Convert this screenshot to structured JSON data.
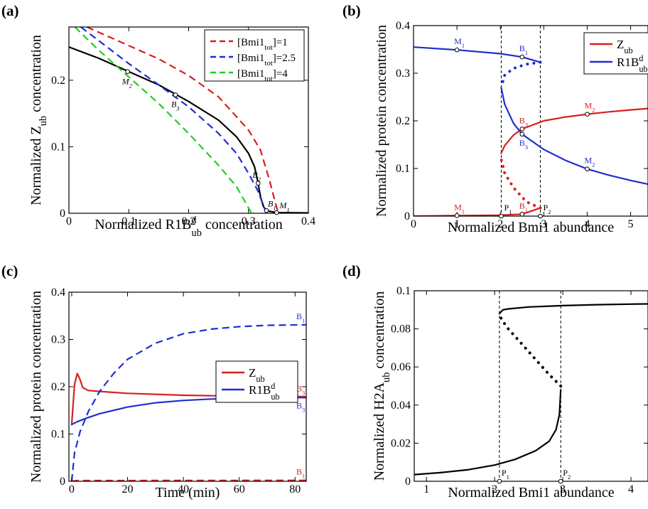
{
  "colors": {
    "red": "#d62020",
    "blue": "#1f2fd0",
    "green": "#22cc22",
    "black": "#000000"
  },
  "chart_data": [
    {
      "panel": "(a)",
      "type": "line",
      "xlabel_main": "Normalized R1B",
      "xlabel_sup": "d",
      "xlabel_sub": "ub",
      "xlabel_tail": " concentration",
      "ylabel_main": "Normalized Z",
      "ylabel_sub": "ub",
      "ylabel_tail": " concentration",
      "xlim": [
        0,
        0.4
      ],
      "ylim": [
        0,
        0.28
      ],
      "xticks": [
        "0",
        "0.1",
        "0.2",
        "0.3",
        "0.4"
      ],
      "yticks": [
        "0",
        "0.1",
        "0.2"
      ],
      "xtick_values": [
        0,
        0.1,
        0.2,
        0.3,
        0.4
      ],
      "ytick_values": [
        0,
        0.1,
        0.2
      ],
      "legend": [
        {
          "label_main": "[Bmi1",
          "label_sub": "tot",
          "label_tail": "]=1",
          "color": "#d62020"
        },
        {
          "label_main": "[Bmi1",
          "label_sub": "tot",
          "label_tail": "]=2.5",
          "color": "#1f2fd0"
        },
        {
          "label_main": "[Bmi1",
          "label_sub": "tot",
          "label_tail": "]=4",
          "color": "#22cc22"
        }
      ],
      "series": [
        {
          "color": "#000000",
          "dash": false,
          "x": [
            0,
            0.05,
            0.1,
            0.15,
            0.2,
            0.25,
            0.28,
            0.3,
            0.31,
            0.315,
            0.32,
            0.325,
            0.33,
            0.34,
            0.35,
            0.4
          ],
          "y": [
            0.25,
            0.233,
            0.213,
            0.193,
            0.168,
            0.14,
            0.115,
            0.09,
            0.07,
            0.05,
            0.025,
            0.01,
            0.004,
            0.002,
            0.001,
            0.0005
          ]
        },
        {
          "color": "#d62020",
          "dash": true,
          "x": [
            0.03,
            0.1,
            0.15,
            0.2,
            0.25,
            0.3,
            0.32,
            0.335,
            0.345,
            0.35
          ],
          "y": [
            0.28,
            0.252,
            0.232,
            0.207,
            0.175,
            0.125,
            0.095,
            0.05,
            0.015,
            0
          ]
        },
        {
          "color": "#1f2fd0",
          "dash": true,
          "x": [
            0.02,
            0.1,
            0.15,
            0.2,
            0.25,
            0.28,
            0.3,
            0.315,
            0.33
          ],
          "y": [
            0.28,
            0.225,
            0.193,
            0.16,
            0.12,
            0.09,
            0.06,
            0.035,
            0
          ]
        },
        {
          "color": "#22cc22",
          "dash": true,
          "x": [
            0.01,
            0.05,
            0.1,
            0.15,
            0.2,
            0.25,
            0.28,
            0.305
          ],
          "y": [
            0.28,
            0.245,
            0.205,
            0.165,
            0.12,
            0.072,
            0.04,
            0
          ]
        }
      ],
      "points": [
        {
          "label": "M",
          "sub": "2",
          "x": 0.098,
          "y": 0.213,
          "color": "#000000",
          "dx": -8,
          "dy": 18
        },
        {
          "label": "B",
          "sub": "3",
          "x": 0.178,
          "y": 0.178,
          "color": "#000000",
          "dx": -6,
          "dy": 17
        },
        {
          "label": "B",
          "sub": "2",
          "x": 0.316,
          "y": 0.045,
          "color": "#000000",
          "dx": -8,
          "dy": -8
        },
        {
          "label": "B",
          "sub": "1",
          "x": 0.33,
          "y": 0.004,
          "color": "#000000",
          "dx": 2,
          "dy": -6
        },
        {
          "label": "M",
          "sub": "1",
          "x": 0.347,
          "y": 0.001,
          "color": "#000000",
          "dx": 4,
          "dy": -6
        }
      ]
    },
    {
      "panel": "(b)",
      "type": "line",
      "xlabel_main": "Normalized Bmi1 abundance",
      "ylabel_main": "Normalized protein concentration",
      "xlim": [
        0,
        5.4
      ],
      "ylim": [
        0,
        0.4
      ],
      "xticks": [
        "0",
        "1",
        "2",
        "3",
        "4",
        "5"
      ],
      "yticks": [
        "0",
        "0.1",
        "0.2",
        "0.3",
        "0.4"
      ],
      "xtick_values": [
        0,
        1,
        2,
        3,
        4,
        5
      ],
      "ytick_values": [
        0,
        0.1,
        0.2,
        0.3,
        0.4
      ],
      "vlines": [
        2.02,
        2.92
      ],
      "legend": [
        {
          "label_main": "Z",
          "label_sub": "ub",
          "color": "#d62020"
        },
        {
          "label_main": "R1B",
          "label_sup": "d",
          "label_sub": "ub",
          "color": "#1f2fd0"
        }
      ],
      "series": [
        {
          "color": "#1f2fd0",
          "style": "solid",
          "x": [
            0,
            1,
            2,
            2.5,
            2.92
          ],
          "y": [
            0.355,
            0.349,
            0.341,
            0.334,
            0.323
          ]
        },
        {
          "color": "#1f2fd0",
          "style": "dotted",
          "x": [
            2.92,
            2.6,
            2.3,
            2.1,
            2.02
          ],
          "y": [
            0.323,
            0.319,
            0.31,
            0.296,
            0.27
          ]
        },
        {
          "color": "#1f2fd0",
          "style": "solid",
          "x": [
            2.02,
            2.1,
            2.3,
            2.5,
            3,
            3.5,
            4,
            4.5,
            5,
            5.4
          ],
          "y": [
            0.27,
            0.235,
            0.195,
            0.172,
            0.14,
            0.117,
            0.099,
            0.086,
            0.075,
            0.067
          ]
        },
        {
          "color": "#d62020",
          "style": "solid",
          "x": [
            0,
            1,
            2,
            2.5,
            2.92
          ],
          "y": [
            0,
            0.001,
            0.002,
            0.004,
            0.017
          ]
        },
        {
          "color": "#d62020",
          "style": "dotted",
          "x": [
            2.92,
            2.6,
            2.3,
            2.1,
            2.02
          ],
          "y": [
            0.017,
            0.03,
            0.06,
            0.09,
            0.12
          ]
        },
        {
          "color": "#d62020",
          "style": "solid",
          "x": [
            2.02,
            2.1,
            2.3,
            2.5,
            3,
            3.5,
            4,
            4.5,
            5,
            5.4
          ],
          "y": [
            0.132,
            0.148,
            0.17,
            0.183,
            0.2,
            0.208,
            0.214,
            0.219,
            0.223,
            0.226
          ]
        }
      ],
      "points": [
        {
          "label": "M",
          "sub": "1",
          "x": 1,
          "y": 0.349,
          "color": "#1f2fd0",
          "dx": -4,
          "dy": -8
        },
        {
          "label": "B",
          "sub": "1",
          "x": 2.5,
          "y": 0.334,
          "color": "#1f2fd0",
          "dx": -4,
          "dy": -8
        },
        {
          "label": "B",
          "sub": "3",
          "x": 2.5,
          "y": 0.183,
          "color": "#d62020",
          "dx": -4,
          "dy": -8
        },
        {
          "label": "B",
          "sub": "3",
          "x": 2.5,
          "y": 0.172,
          "color": "#1f2fd0",
          "dx": -4,
          "dy": 16
        },
        {
          "label": "M",
          "sub": "2",
          "x": 4,
          "y": 0.214,
          "color": "#d62020",
          "dx": -4,
          "dy": -8
        },
        {
          "label": "M",
          "sub": "2",
          "x": 4,
          "y": 0.099,
          "color": "#1f2fd0",
          "dx": -4,
          "dy": -8
        },
        {
          "label": "M",
          "sub": "1",
          "x": 1,
          "y": 0.001,
          "color": "#d62020",
          "dx": -4,
          "dy": -8
        },
        {
          "label": "B",
          "sub": "1",
          "x": 2.5,
          "y": 0.004,
          "color": "#d62020",
          "dx": -4,
          "dy": -8
        },
        {
          "label": "P",
          "sub": "1",
          "x": 2.02,
          "y": 0,
          "color": "#000000",
          "dx": 4,
          "dy": -8
        },
        {
          "label": "P",
          "sub": "2",
          "x": 2.92,
          "y": 0,
          "color": "#000000",
          "dx": 4,
          "dy": -8
        }
      ]
    },
    {
      "panel": "(c)",
      "type": "line",
      "xlabel_main": "Time (min)",
      "ylabel_main": "Normalized protein concentration",
      "xlim": [
        -1,
        84
      ],
      "ylim": [
        0,
        0.4
      ],
      "xticks": [
        "0",
        "20",
        "40",
        "60",
        "80"
      ],
      "yticks": [
        "0",
        "0.1",
        "0.2",
        "0.3",
        "0.4"
      ],
      "xtick_values": [
        0,
        20,
        40,
        60,
        80
      ],
      "ytick_values": [
        0,
        0.1,
        0.2,
        0.3,
        0.4
      ],
      "legend": [
        {
          "label_main": "Z",
          "label_sub": "ub",
          "color": "#d62020"
        },
        {
          "label_main": "R1B",
          "label_sup": "d",
          "label_sub": "ub",
          "color": "#1f2fd0"
        }
      ],
      "series": [
        {
          "color": "#d62020",
          "style": "solid",
          "x": [
            0,
            1,
            2,
            3,
            4,
            6,
            10,
            20,
            40,
            60,
            84
          ],
          "y": [
            0.12,
            0.205,
            0.228,
            0.215,
            0.198,
            0.192,
            0.19,
            0.186,
            0.182,
            0.18,
            0.179
          ]
        },
        {
          "color": "#1f2fd0",
          "style": "solid",
          "x": [
            0,
            2,
            5,
            10,
            20,
            30,
            40,
            50,
            60,
            70,
            84
          ],
          "y": [
            0.12,
            0.126,
            0.133,
            0.143,
            0.157,
            0.166,
            0.171,
            0.174,
            0.176,
            0.177,
            0.177
          ]
        },
        {
          "color": "#1f2fd0",
          "style": "dashed",
          "x": [
            0,
            1,
            3,
            6,
            10,
            15,
            20,
            30,
            40,
            50,
            60,
            70,
            84
          ],
          "y": [
            0.0,
            0.06,
            0.105,
            0.148,
            0.19,
            0.228,
            0.258,
            0.292,
            0.312,
            0.322,
            0.327,
            0.33,
            0.331
          ]
        },
        {
          "color": "#d62020",
          "style": "dashed",
          "x": [
            0,
            2,
            84
          ],
          "y": [
            0.0,
            0.0015,
            0.002
          ]
        }
      ],
      "end_labels": [
        {
          "label": "B",
          "sub": "1",
          "y": 0.331,
          "color": "#1f2fd0",
          "dy": -8
        },
        {
          "label": "B",
          "sub": "3",
          "y": 0.18,
          "color": "#d62020",
          "dy": -7
        },
        {
          "label": "B",
          "sub": "3",
          "y": 0.177,
          "color": "#1f2fd0",
          "dy": 15
        },
        {
          "label": "B",
          "sub": "1",
          "y": 0.002,
          "color": "#d62020",
          "dy": -8
        }
      ]
    },
    {
      "panel": "(d)",
      "type": "line",
      "xlabel_main": "Normalized Bmi1 abundance",
      "ylabel_main": "Normalized H2A",
      "ylabel_sub": "ub",
      "ylabel_tail": " concentration",
      "xlim": [
        0.82,
        4.25
      ],
      "ylim": [
        0,
        0.1
      ],
      "xticks": [
        "1",
        "2",
        "3",
        "4"
      ],
      "yticks": [
        "0",
        "0.02",
        "0.04",
        "0.06",
        "0.08",
        "0.1"
      ],
      "xtick_values": [
        1,
        2,
        3,
        4
      ],
      "ytick_values": [
        0,
        0.02,
        0.04,
        0.06,
        0.08,
        0.1
      ],
      "vlines": [
        2.07,
        2.97
      ],
      "series": [
        {
          "color": "#000000",
          "style": "solid",
          "x": [
            0.82,
            1.2,
            1.6,
            2.0,
            2.3,
            2.6,
            2.8,
            2.9,
            2.95,
            2.97
          ],
          "y": [
            0.0035,
            0.0045,
            0.006,
            0.0085,
            0.0115,
            0.016,
            0.021,
            0.027,
            0.035,
            0.048
          ]
        },
        {
          "color": "#000000",
          "style": "dotted",
          "x": [
            2.97,
            2.8,
            2.6,
            2.4,
            2.2,
            2.1,
            2.07
          ],
          "y": [
            0.05,
            0.056,
            0.064,
            0.072,
            0.08,
            0.085,
            0.088
          ]
        },
        {
          "color": "#000000",
          "style": "solid",
          "x": [
            2.07,
            2.12,
            2.2,
            2.5,
            3.0,
            3.5,
            4.0,
            4.25
          ],
          "y": [
            0.088,
            0.09,
            0.0905,
            0.0915,
            0.0922,
            0.0927,
            0.093,
            0.0931
          ]
        }
      ],
      "points": [
        {
          "label": "P",
          "sub": "1",
          "x": 2.07,
          "y": 0,
          "color": "#000000",
          "dx": 3,
          "dy": -8
        },
        {
          "label": "P",
          "sub": "2",
          "x": 2.97,
          "y": 0,
          "color": "#000000",
          "dx": 3,
          "dy": -8
        }
      ]
    }
  ]
}
